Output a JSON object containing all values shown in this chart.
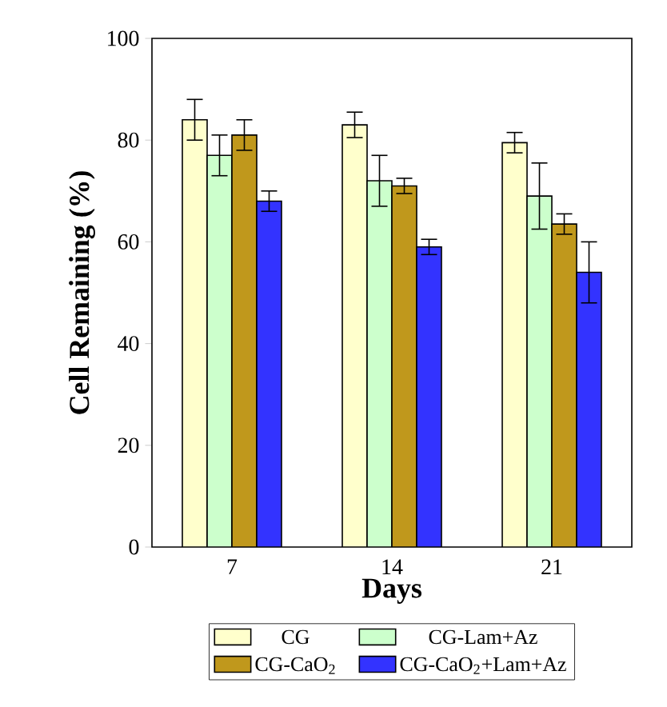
{
  "chart_data": {
    "type": "bar",
    "xlabel": "Days",
    "ylabel": "Cell Remaining (%)",
    "categories": [
      "7",
      "14",
      "21"
    ],
    "series": [
      {
        "name": "CG",
        "color": "#ffffcc",
        "values": [
          84,
          83,
          79.5
        ],
        "errors": [
          4,
          2.5,
          2
        ]
      },
      {
        "name": "CG-Lam+Az",
        "color": "#ccffcc",
        "values": [
          77,
          72,
          69
        ],
        "errors": [
          4,
          5,
          6.5
        ]
      },
      {
        "name": "CG-CaO$_{2}$",
        "color": "#c0981c",
        "values": [
          81,
          71,
          63.5
        ],
        "errors": [
          3,
          1.5,
          2
        ]
      },
      {
        "name": "CG-CaO$_{2}$+Lam+Az",
        "color": "#3333ff",
        "values": [
          68,
          59,
          54
        ],
        "errors": [
          2,
          1.5,
          6
        ]
      }
    ],
    "ylim": [
      0,
      100
    ],
    "yticks": [
      0,
      20,
      40,
      60,
      80,
      100
    ],
    "legend": "bottom"
  }
}
